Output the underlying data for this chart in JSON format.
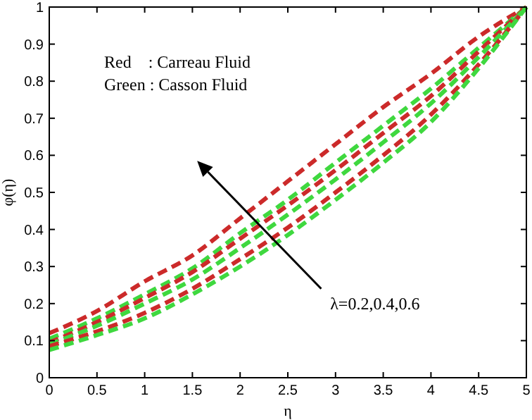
{
  "chart_data": {
    "type": "line",
    "xlabel": "η",
    "ylabel": "φ(η)",
    "x": [
      0,
      0.5,
      1,
      1.5,
      2,
      2.5,
      3,
      3.5,
      4,
      4.5,
      5
    ],
    "series": [
      {
        "color": "#cc2a2a",
        "values": [
          0.12,
          0.18,
          0.26,
          0.33,
          0.43,
          0.53,
          0.63,
          0.73,
          0.82,
          0.92,
          1
        ]
      },
      {
        "color": "#3fd83f",
        "values": [
          0.105,
          0.16,
          0.225,
          0.295,
          0.39,
          0.48,
          0.58,
          0.68,
          0.78,
          0.89,
          1
        ]
      },
      {
        "color": "#cc2a2a",
        "values": [
          0.095,
          0.15,
          0.215,
          0.285,
          0.375,
          0.465,
          0.56,
          0.66,
          0.76,
          0.88,
          1
        ]
      },
      {
        "color": "#3fd83f",
        "values": [
          0.09,
          0.14,
          0.2,
          0.265,
          0.35,
          0.44,
          0.535,
          0.635,
          0.74,
          0.865,
          1
        ]
      },
      {
        "color": "#cc2a2a",
        "values": [
          0.085,
          0.125,
          0.175,
          0.24,
          0.32,
          0.405,
          0.5,
          0.6,
          0.71,
          0.845,
          1
        ]
      },
      {
        "color": "#3fd83f",
        "values": [
          0.075,
          0.115,
          0.16,
          0.225,
          0.3,
          0.385,
          0.48,
          0.58,
          0.69,
          0.835,
          1
        ]
      }
    ],
    "xlim": [
      0,
      5
    ],
    "xticks": [
      0,
      0.5,
      1,
      1.5,
      2,
      2.5,
      3,
      3.5,
      4,
      4.5,
      5
    ],
    "ylim": [
      0,
      1
    ],
    "yticks": [
      0,
      0.1,
      0.2,
      0.3,
      0.4,
      0.5,
      0.6,
      0.7,
      0.8,
      0.9,
      1
    ],
    "grid": false,
    "line_style": "dashed",
    "marker": "none",
    "annotations": [
      "Red    : Carreau Fluid",
      "Green : Casson Fluid",
      "λ=0.2,0.4,0.6"
    ]
  }
}
